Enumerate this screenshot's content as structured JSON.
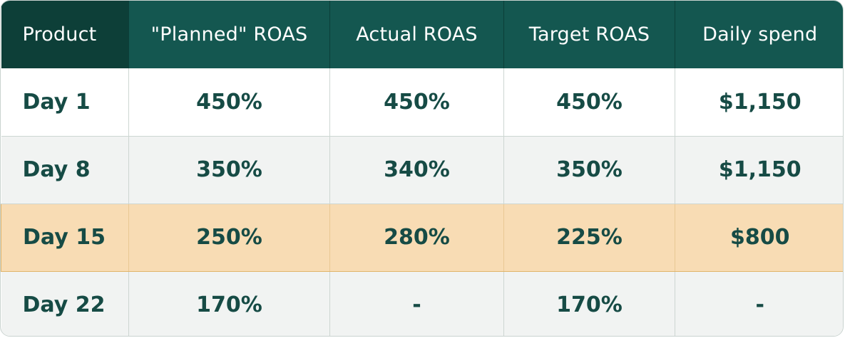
{
  "table": {
    "headers": [
      "Product",
      "\"Planned\" ROAS",
      "Actual ROAS",
      "Target ROAS",
      "Daily spend"
    ],
    "rows": [
      {
        "cells": [
          "Day 1",
          "450%",
          "450%",
          "450%",
          "$1,150"
        ]
      },
      {
        "cells": [
          "Day 8",
          "350%",
          "340%",
          "350%",
          "$1,150"
        ]
      },
      {
        "cells": [
          "Day 15",
          "250%",
          "280%",
          "225%",
          "$800"
        ]
      },
      {
        "cells": [
          "Day 22",
          "170%",
          "-",
          "170%",
          "-"
        ]
      }
    ]
  },
  "colors": {
    "header_bg": "#145750",
    "header_first_bg": "#0d3f38",
    "text": "#164b45",
    "row_grey": "#f1f3f2",
    "row_highlight": "#f8dcb4"
  }
}
